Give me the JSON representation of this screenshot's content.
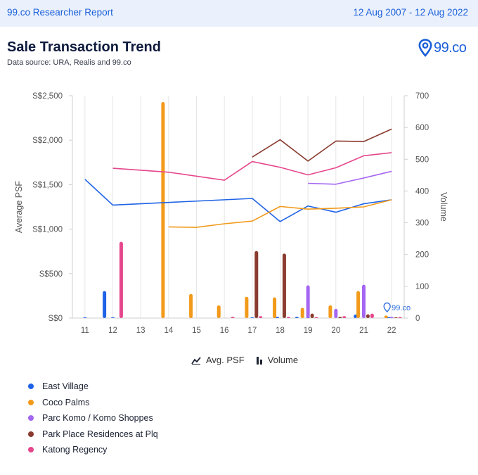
{
  "header": {
    "report_name": "99.co Researcher Report",
    "date_range": "12 Aug 2007 - 12 Aug 2022"
  },
  "title": "Sale Transaction Trend",
  "subtitle": "Data source: URA, Realis and 99.co",
  "logo": {
    "text": "99.co",
    "icon": "location-pin-icon",
    "color": "#1a5fd8"
  },
  "legend": {
    "avg_psf_label": "Avg. PSF",
    "volume_label": "Volume"
  },
  "colors": {
    "East Village": "#1f63e6",
    "Coco Palms": "#f29a1a",
    "Parc Komo / Komo Shoppes": "#a466f2",
    "Park Place Residences at Plq": "#8a3b2f",
    "Katong Regency": "#e6478c"
  },
  "chart_data": {
    "type": "line",
    "title": "Sale Transaction Trend",
    "x": [
      "11",
      "12",
      "13",
      "14",
      "15",
      "16",
      "17",
      "18",
      "19",
      "20",
      "21",
      "22"
    ],
    "xlabel": "",
    "ylabel": "Average PSF",
    "y2label": "Volume",
    "ylim": [
      0,
      2500
    ],
    "y2lim": [
      0,
      700
    ],
    "y_ticks": [
      "S$0",
      "S$500",
      "S$1,000",
      "S$1,500",
      "S$2,000",
      "S$2,500"
    ],
    "y2_ticks": [
      "0",
      "100",
      "200",
      "300",
      "400",
      "500",
      "600",
      "700"
    ],
    "grid": "vertical",
    "psf_series": [
      {
        "name": "East Village",
        "points": [
          [
            11,
            1560
          ],
          [
            12,
            1270
          ],
          [
            17,
            1345
          ],
          [
            18,
            1085
          ],
          [
            19,
            1260
          ],
          [
            20,
            1190
          ],
          [
            21,
            1285
          ],
          [
            22,
            1330
          ]
        ]
      },
      {
        "name": "Coco Palms",
        "points": [
          [
            14,
            1025
          ],
          [
            15,
            1020
          ],
          [
            16,
            1060
          ],
          [
            17,
            1090
          ],
          [
            18,
            1255
          ],
          [
            19,
            1225
          ],
          [
            20,
            1235
          ],
          [
            21,
            1250
          ],
          [
            22,
            1330
          ]
        ]
      },
      {
        "name": "Parc Komo / Komo Shoppes",
        "points": [
          [
            19,
            1515
          ],
          [
            20,
            1505
          ],
          [
            21,
            1575
          ],
          [
            22,
            1650
          ]
        ]
      },
      {
        "name": "Park Place Residences at Plq",
        "points": [
          [
            17,
            1810
          ],
          [
            18,
            2005
          ],
          [
            19,
            1765
          ],
          [
            20,
            1990
          ],
          [
            21,
            1985
          ],
          [
            22,
            2125
          ]
        ]
      },
      {
        "name": "Katong Regency",
        "points": [
          [
            12,
            1685
          ],
          [
            14,
            1640
          ],
          [
            16,
            1550
          ],
          [
            17,
            1760
          ],
          [
            18,
            1695
          ],
          [
            19,
            1610
          ],
          [
            20,
            1690
          ],
          [
            21,
            1825
          ],
          [
            22,
            1860
          ]
        ]
      }
    ],
    "volume_series": [
      {
        "name": "East Village",
        "points": [
          [
            11,
            1
          ],
          [
            11.7,
            85
          ],
          [
            12,
            1
          ],
          [
            17,
            1
          ],
          [
            17.9,
            4
          ],
          [
            18.6,
            4
          ],
          [
            19,
            1
          ],
          [
            20.7,
            11
          ],
          [
            21.9,
            3
          ]
        ]
      },
      {
        "name": "Coco Palms",
        "points": [
          [
            13.8,
            680
          ],
          [
            14.8,
            76
          ],
          [
            15.8,
            40
          ],
          [
            16.8,
            67
          ],
          [
            17.8,
            65
          ],
          [
            18.8,
            32
          ],
          [
            19.8,
            40
          ],
          [
            20.8,
            85
          ],
          [
            21.8,
            8
          ]
        ]
      },
      {
        "name": "Parc Komo / Komo Shoppes",
        "points": [
          [
            19,
            103
          ],
          [
            20,
            29
          ],
          [
            21,
            105
          ],
          [
            22,
            4
          ]
        ]
      },
      {
        "name": "Park Place Residences at Plq",
        "points": [
          [
            17.15,
            211
          ],
          [
            18.15,
            203
          ],
          [
            19.15,
            14
          ],
          [
            20.15,
            4
          ],
          [
            21.15,
            12
          ],
          [
            22.15,
            2
          ]
        ]
      },
      {
        "name": "Katong Regency",
        "points": [
          [
            12.3,
            240
          ],
          [
            16.3,
            4
          ],
          [
            17.3,
            6
          ],
          [
            18.3,
            4
          ],
          [
            19.3,
            3
          ],
          [
            20.3,
            6
          ],
          [
            21.3,
            14
          ],
          [
            22.3,
            3
          ]
        ]
      }
    ],
    "watermark": "99.co"
  },
  "series_legend": [
    {
      "label": "East Village",
      "color": "#1f63e6"
    },
    {
      "label": "Coco Palms",
      "color": "#f29a1a"
    },
    {
      "label": "Parc Komo / Komo Shoppes",
      "color": "#a466f2"
    },
    {
      "label": "Park Place Residences at Plq",
      "color": "#8a3b2f"
    },
    {
      "label": "Katong Regency",
      "color": "#e6478c"
    }
  ]
}
